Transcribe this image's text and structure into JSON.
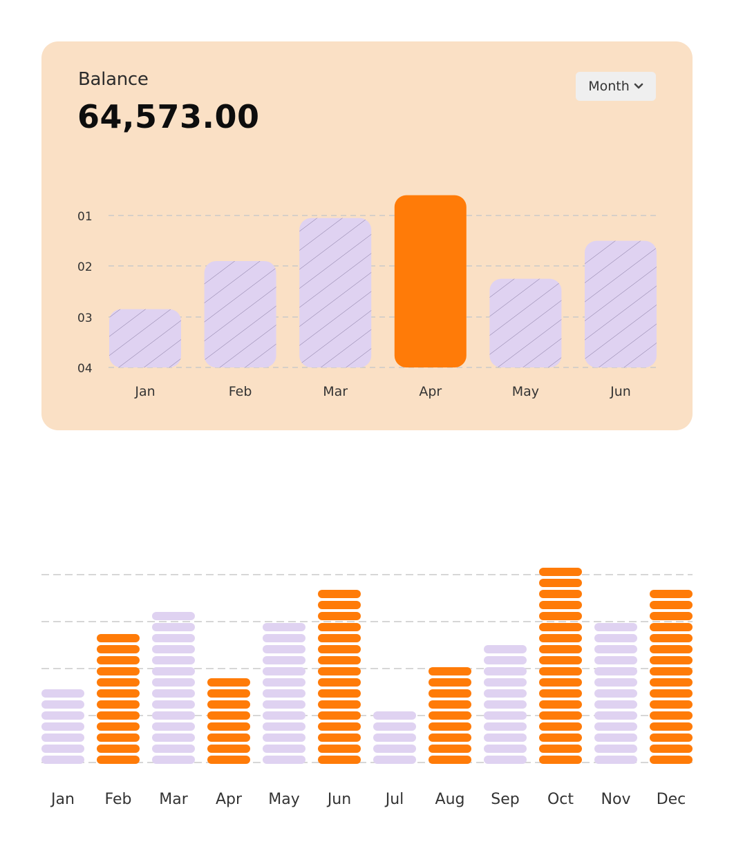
{
  "balance_card": {
    "label": "Balance",
    "value": "64,573.00",
    "period_select": {
      "selected": "Month"
    }
  },
  "colors": {
    "card_background": "#fae0c5",
    "bar_default": "#dfd2f1",
    "bar_highlight": "#ff7b08",
    "hatch": "#8c7fa6",
    "gridline": "#c9c9c9"
  },
  "chart_data": [
    {
      "type": "bar",
      "categories": [
        "Jan",
        "Feb",
        "Mar",
        "Apr",
        "May",
        "Jun"
      ],
      "values": [
        1.15,
        2.1,
        2.95,
        3.4,
        1.75,
        2.5
      ],
      "highlight_category": "Apr",
      "pattern": "diagonal-hatch",
      "y_tick_labels": [
        "01",
        "02",
        "03",
        "04"
      ],
      "ylim": [
        0,
        3
      ],
      "grid": true,
      "xlabel": "",
      "ylabel": ""
    },
    {
      "type": "bar",
      "style": "segmented",
      "categories": [
        "Jan",
        "Feb",
        "Mar",
        "Apr",
        "May",
        "Jun",
        "Jul",
        "Aug",
        "Sep",
        "Oct",
        "Nov",
        "Dec"
      ],
      "values": [
        7,
        12,
        14,
        8,
        13,
        16,
        5,
        9,
        11,
        18,
        13,
        16
      ],
      "highlighted_categories": [
        "Feb",
        "Apr",
        "Jun",
        "Aug",
        "Oct",
        "Dec"
      ],
      "grid": true,
      "xlabel": "",
      "ylabel": ""
    }
  ]
}
